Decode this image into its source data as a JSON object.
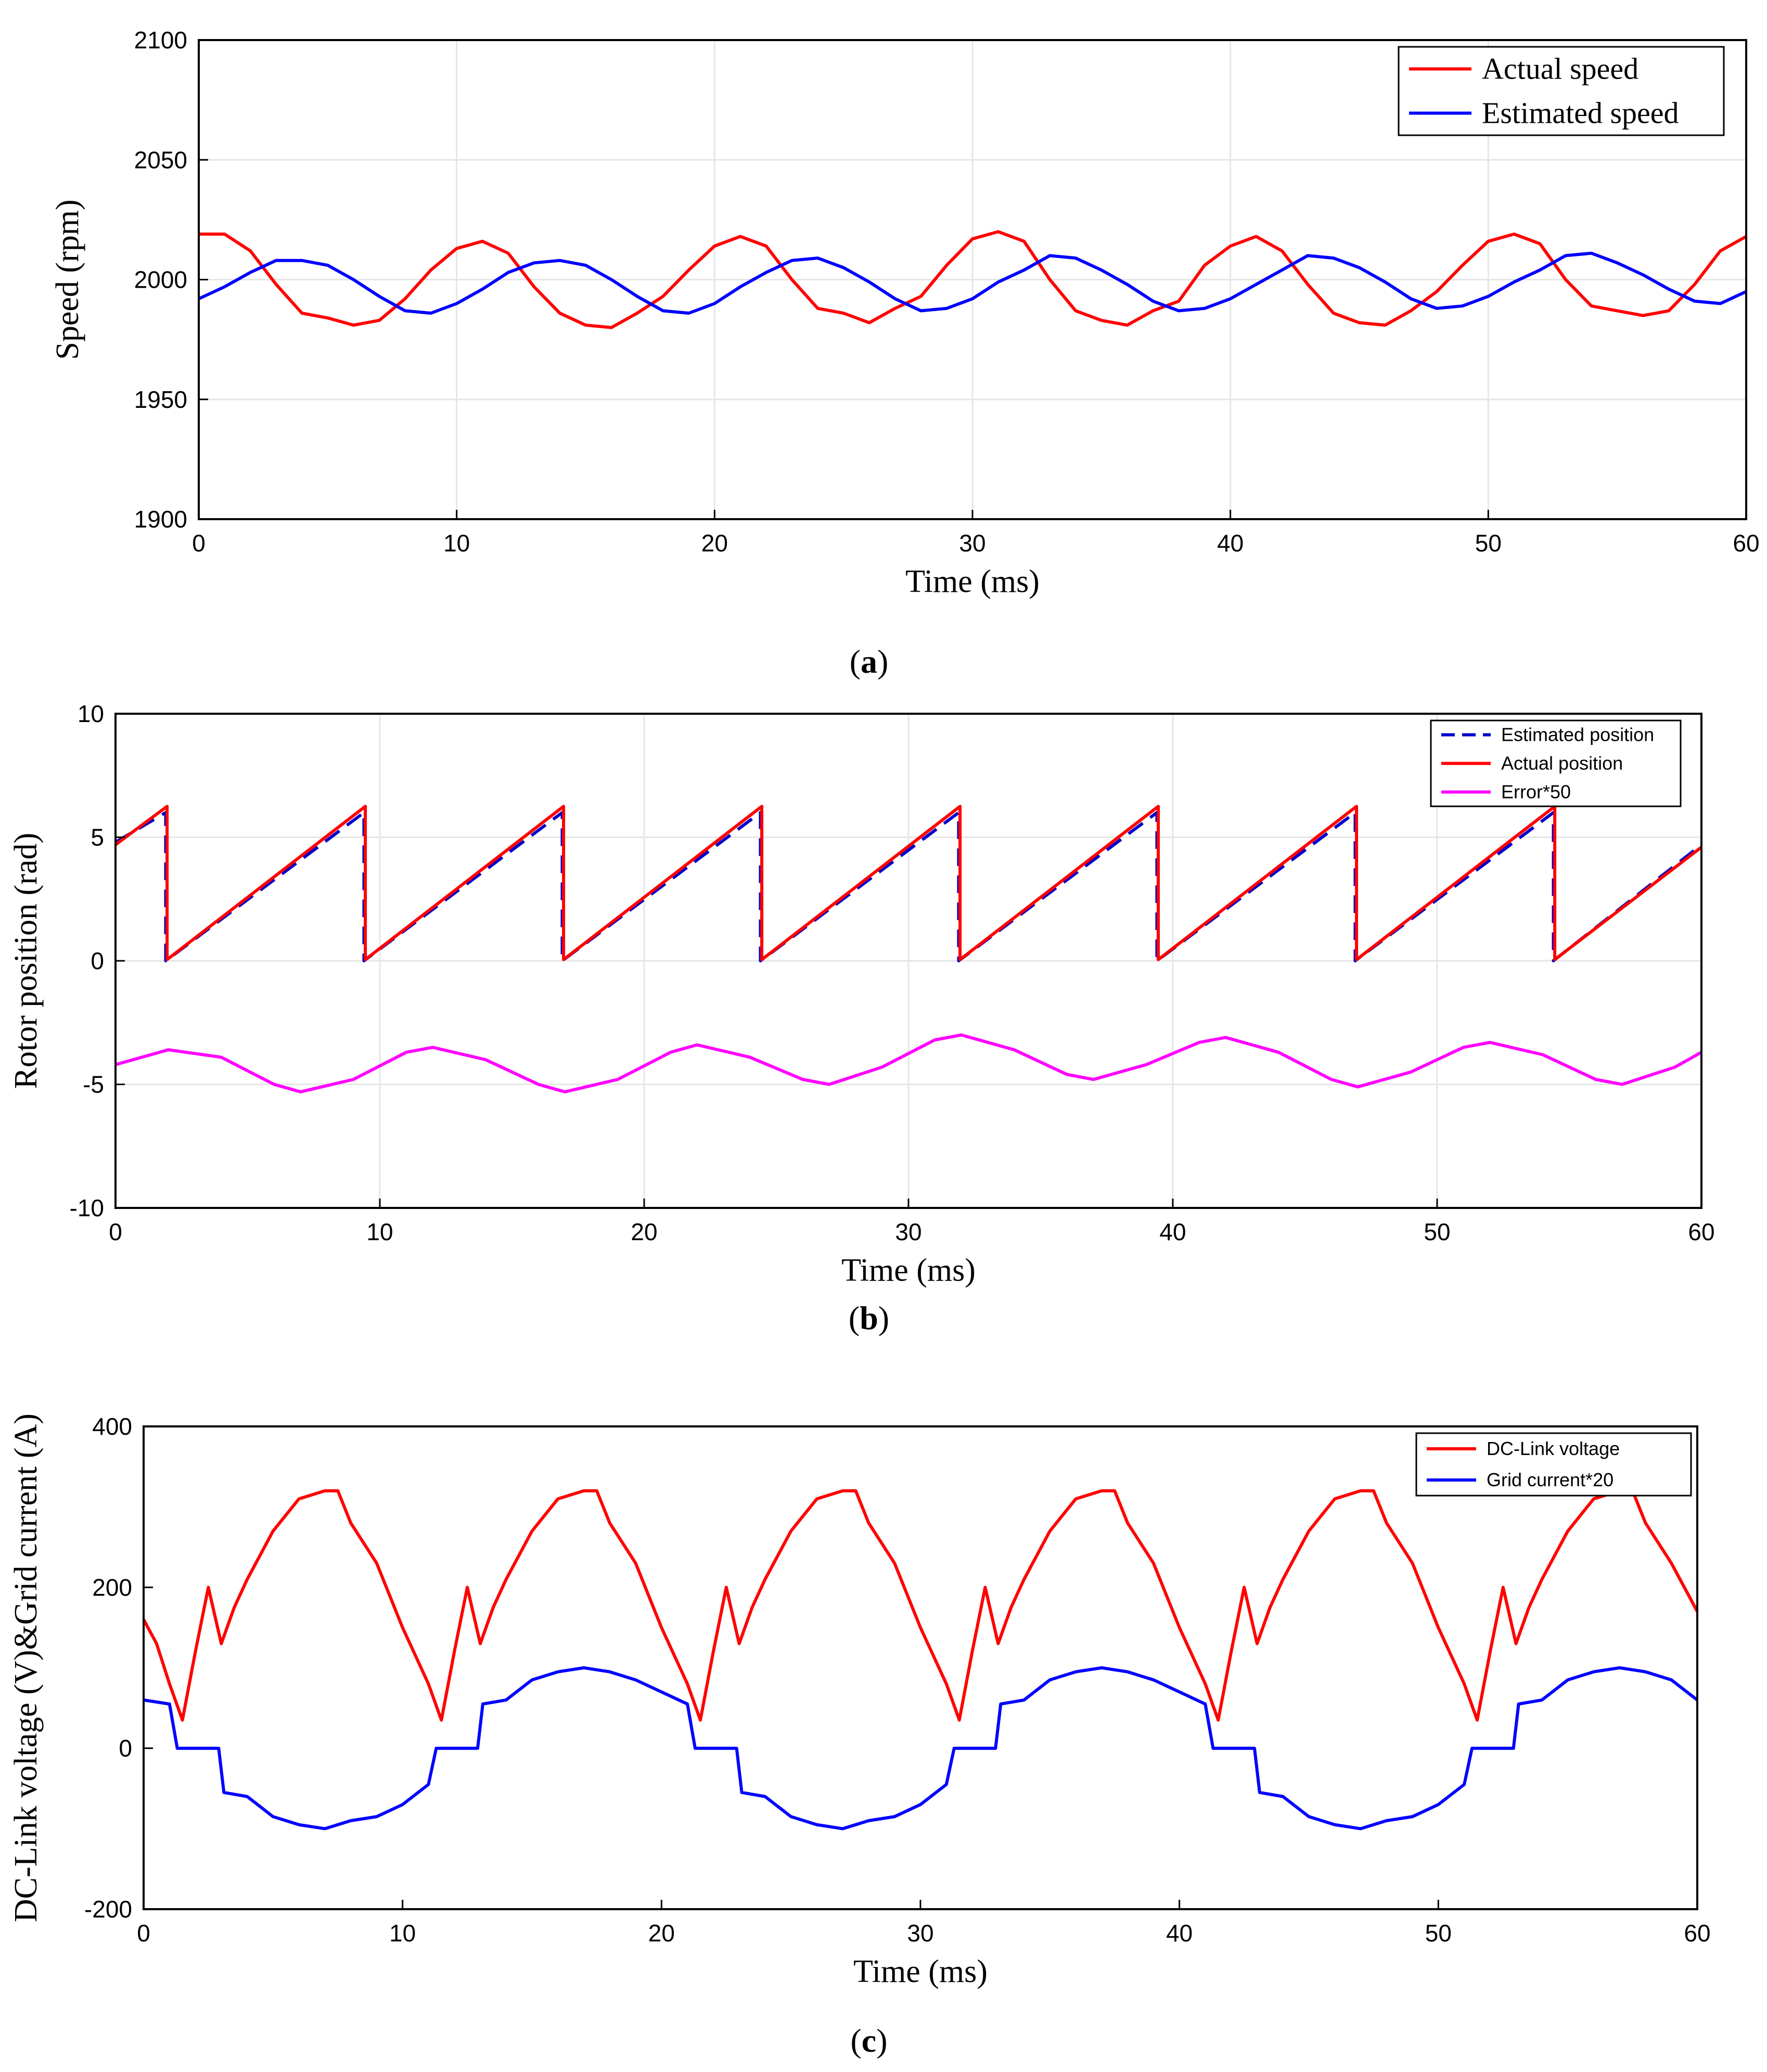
{
  "chart_data": [
    {
      "id": "a",
      "type": "line",
      "caption": {
        "open": "(",
        "letter": "a",
        "close": ")"
      },
      "xlabel": "Time (ms)",
      "ylabel": "Speed (rpm)",
      "xlim": [
        0,
        60
      ],
      "ylim": [
        1900,
        2100
      ],
      "xticks": [
        0,
        10,
        20,
        30,
        40,
        50,
        60
      ],
      "yticks": [
        1900,
        1950,
        2000,
        2050,
        2100
      ],
      "grid": true,
      "legend_position": "top-right",
      "legend_style": "serif",
      "series": [
        {
          "name": "Actual speed",
          "color": "#ff0000",
          "dash": "solid",
          "x": [
            0,
            1,
            2,
            3,
            4,
            5,
            6,
            7,
            8,
            9,
            10,
            11,
            12,
            13,
            14,
            15,
            16,
            17,
            18,
            19,
            20,
            21,
            22,
            23,
            24,
            25,
            26,
            27,
            28,
            29,
            30,
            31,
            32,
            33,
            34,
            35,
            36,
            37,
            38,
            39,
            40,
            41,
            42,
            43,
            44,
            45,
            46,
            47,
            48,
            49,
            50,
            51,
            52,
            53,
            54,
            55,
            56,
            57,
            58,
            59,
            60
          ],
          "values": [
            2019,
            2019,
            2012,
            1998,
            1986,
            1984,
            1981,
            1983,
            1992,
            2004,
            2013,
            2016,
            2011,
            1997,
            1986,
            1981,
            1980,
            1986,
            1993,
            2004,
            2014,
            2018,
            2014,
            2000,
            1988,
            1986,
            1982,
            1988,
            1993,
            2006,
            2017,
            2020,
            2016,
            2000,
            1987,
            1983,
            1981,
            1987,
            1991,
            2006,
            2014,
            2018,
            2012,
            1998,
            1986,
            1982,
            1981,
            1987,
            1995,
            2006,
            2016,
            2019,
            2015,
            2000,
            1989,
            1987,
            1985,
            1987,
            1998,
            2012,
            2018
          ]
        },
        {
          "name": "Estimated speed",
          "color": "#0000ff",
          "dash": "solid",
          "x": [
            0,
            1,
            2,
            3,
            4,
            5,
            6,
            7,
            8,
            9,
            10,
            11,
            12,
            13,
            14,
            15,
            16,
            17,
            18,
            19,
            20,
            21,
            22,
            23,
            24,
            25,
            26,
            27,
            28,
            29,
            30,
            31,
            32,
            33,
            34,
            35,
            36,
            37,
            38,
            39,
            40,
            41,
            42,
            43,
            44,
            45,
            46,
            47,
            48,
            49,
            50,
            51,
            52,
            53,
            54,
            55,
            56,
            57,
            58,
            59,
            60
          ],
          "values": [
            1992,
            1997,
            2003,
            2008,
            2008,
            2006,
            2000,
            1993,
            1987,
            1986,
            1990,
            1996,
            2003,
            2007,
            2008,
            2006,
            2000,
            1993,
            1987,
            1986,
            1990,
            1997,
            2003,
            2008,
            2009,
            2005,
            1999,
            1992,
            1987,
            1988,
            1992,
            1999,
            2004,
            2010,
            2009,
            2004,
            1998,
            1991,
            1987,
            1988,
            1992,
            1998,
            2004,
            2010,
            2009,
            2005,
            1999,
            1992,
            1988,
            1989,
            1993,
            1999,
            2004,
            2010,
            2011,
            2007,
            2002,
            1996,
            1991,
            1990,
            1995
          ]
        }
      ]
    },
    {
      "id": "b",
      "type": "line",
      "caption": {
        "open": "(",
        "letter": "b",
        "close": ")"
      },
      "xlabel": "Time (ms)",
      "ylabel": "Rotor position (rad)",
      "xlim": [
        0,
        60
      ],
      "ylim": [
        -10,
        10
      ],
      "xticks": [
        0,
        10,
        20,
        30,
        40,
        50,
        60
      ],
      "yticks": [
        -10,
        -5,
        0,
        5,
        10
      ],
      "grid": true,
      "legend_position": "top-right",
      "legend_style": "sans",
      "series": [
        {
          "name": "Estimated position",
          "color": "#0000cc",
          "dash": "dashed",
          "x": [
            0,
            1.9,
            1.9,
            9.4,
            9.4,
            16.9,
            16.9,
            24.4,
            24.4,
            31.9,
            31.9,
            39.4,
            39.4,
            46.9,
            46.9,
            54.4,
            54.4,
            60
          ],
          "values": [
            4.8,
            6.0,
            0,
            6.0,
            0,
            6.0,
            0,
            6.0,
            0,
            6.0,
            0,
            6.0,
            0,
            6.0,
            0,
            6.0,
            0,
            4.7
          ]
        },
        {
          "name": "Actual position",
          "color": "#ff0000",
          "dash": "solid",
          "x": [
            0,
            1.95,
            1.95,
            9.45,
            9.45,
            16.95,
            16.95,
            24.45,
            24.45,
            31.95,
            31.95,
            39.45,
            39.45,
            46.95,
            46.95,
            54.45,
            54.45,
            60
          ],
          "values": [
            4.7,
            6.25,
            0.05,
            6.25,
            0.05,
            6.25,
            0.05,
            6.25,
            0.05,
            6.25,
            0.05,
            6.25,
            0.05,
            6.25,
            0.05,
            6.25,
            0.05,
            4.6
          ]
        },
        {
          "name": "Error*50",
          "color": "#ff00ff",
          "dash": "solid",
          "x": [
            0,
            2,
            4,
            6,
            7,
            9,
            11,
            12,
            14,
            16,
            17,
            19,
            21,
            22,
            24,
            26,
            27,
            29,
            31,
            32,
            34,
            36,
            37,
            39,
            41,
            42,
            44,
            46,
            47,
            49,
            51,
            52,
            54,
            56,
            57,
            59,
            60
          ],
          "values": [
            -4.2,
            -3.6,
            -3.9,
            -5.0,
            -5.3,
            -4.8,
            -3.7,
            -3.5,
            -4.0,
            -5.0,
            -5.3,
            -4.8,
            -3.7,
            -3.4,
            -3.9,
            -4.8,
            -5.0,
            -4.3,
            -3.2,
            -3.0,
            -3.6,
            -4.6,
            -4.8,
            -4.2,
            -3.3,
            -3.1,
            -3.7,
            -4.8,
            -5.1,
            -4.5,
            -3.5,
            -3.3,
            -3.8,
            -4.8,
            -5.0,
            -4.3,
            -3.7
          ]
        }
      ]
    },
    {
      "id": "c",
      "type": "line",
      "caption": {
        "open": "(",
        "letter": "c",
        "close": ")"
      },
      "xlabel": "Time (ms)",
      "ylabel": "DC-Link voltage (V)&Grid current (A)",
      "xlim": [
        0,
        60
      ],
      "ylim": [
        -200,
        400
      ],
      "xticks": [
        0,
        10,
        20,
        30,
        40,
        50,
        60
      ],
      "yticks": [
        -200,
        0,
        200,
        400
      ],
      "grid": false,
      "legend_position": "top-right",
      "legend_style": "sans",
      "series": [
        {
          "name": "DC-Link voltage",
          "color": "#ff0000",
          "dash": "solid",
          "x": [
            0,
            0.5,
            1,
            1.5,
            2,
            2.5,
            3,
            3.5,
            4,
            5,
            6,
            7,
            7.5,
            8,
            9,
            10,
            11,
            11.5,
            12,
            12.5,
            13,
            13.5,
            14,
            15,
            16,
            17,
            17.5,
            18,
            19,
            20,
            21,
            21.5,
            22,
            22.5,
            23,
            23.5,
            24,
            25,
            26,
            27,
            27.5,
            28,
            29,
            30,
            31,
            31.5,
            32,
            32.5,
            33,
            33.5,
            34,
            35,
            36,
            37,
            37.5,
            38,
            39,
            40,
            41,
            41.5,
            42,
            42.5,
            43,
            43.5,
            44,
            45,
            46,
            47,
            47.5,
            48,
            49,
            50,
            51,
            51.5,
            52,
            52.5,
            53,
            53.5,
            54,
            55,
            56,
            57,
            57.5,
            58,
            59,
            60
          ],
          "values": [
            160,
            130,
            80,
            35,
            120,
            200,
            130,
            175,
            210,
            270,
            310,
            320,
            320,
            280,
            230,
            150,
            80,
            35,
            120,
            200,
            130,
            175,
            210,
            270,
            310,
            320,
            320,
            280,
            230,
            150,
            80,
            35,
            120,
            200,
            130,
            175,
            210,
            270,
            310,
            320,
            320,
            280,
            230,
            150,
            80,
            35,
            120,
            200,
            130,
            175,
            210,
            270,
            310,
            320,
            320,
            280,
            230,
            150,
            80,
            35,
            120,
            200,
            130,
            175,
            210,
            270,
            310,
            320,
            320,
            280,
            230,
            150,
            80,
            35,
            120,
            200,
            130,
            175,
            210,
            270,
            310,
            320,
            320,
            280,
            230,
            170
          ]
        },
        {
          "name": "Grid current*20",
          "color": "#0000ff",
          "dash": "solid",
          "x": [
            0,
            1,
            1.3,
            2.9,
            3.1,
            4,
            5,
            6,
            7,
            8,
            9,
            10,
            11,
            11.3,
            12.9,
            13.1,
            14,
            15,
            16,
            17,
            18,
            19,
            20,
            21,
            21.3,
            22.9,
            23.1,
            24,
            25,
            26,
            27,
            28,
            29,
            30,
            31,
            31.3,
            32.9,
            33.1,
            34,
            35,
            36,
            37,
            38,
            39,
            40,
            41,
            41.3,
            42.9,
            43.1,
            44,
            45,
            46,
            47,
            48,
            49,
            50,
            51,
            51.3,
            52.9,
            53.1,
            54,
            55,
            56,
            57,
            58,
            59,
            60
          ],
          "values": [
            60,
            55,
            0,
            0,
            -55,
            -60,
            -85,
            -95,
            -100,
            -90,
            -85,
            -70,
            -45,
            0,
            0,
            55,
            60,
            85,
            95,
            100,
            95,
            85,
            70,
            55,
            0,
            0,
            -55,
            -60,
            -85,
            -95,
            -100,
            -90,
            -85,
            -70,
            -45,
            0,
            0,
            55,
            60,
            85,
            95,
            100,
            95,
            85,
            70,
            55,
            0,
            0,
            -55,
            -60,
            -85,
            -95,
            -100,
            -90,
            -85,
            -70,
            -45,
            0,
            0,
            55,
            60,
            85,
            95,
            100,
            95,
            85,
            60
          ]
        }
      ]
    }
  ]
}
